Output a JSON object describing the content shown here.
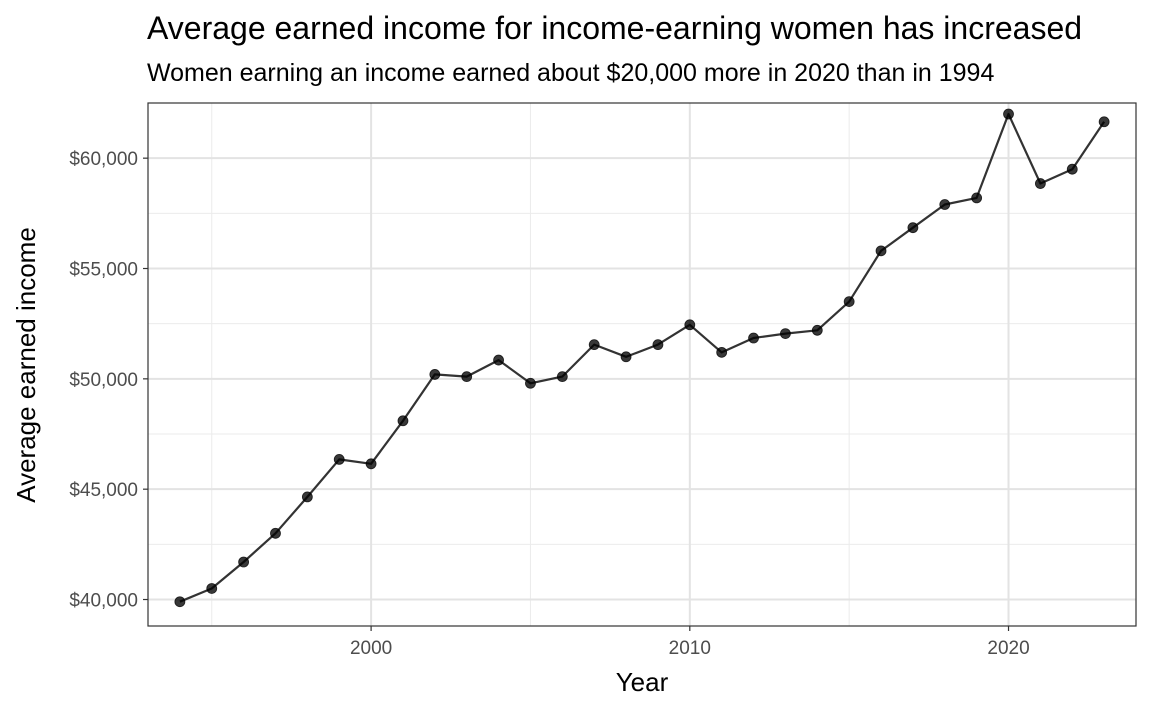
{
  "chart_data": {
    "type": "line",
    "title": "Average earned income for income-earning women has increased",
    "subtitle": "Women earning an income earned about $20,000 more in 2020 than in 1994",
    "xlabel": "Year",
    "ylabel": "Average earned income",
    "xlim": [
      1993,
      2024
    ],
    "ylim": [
      38800,
      62500
    ],
    "x_ticks": [
      2000,
      2010,
      2020
    ],
    "y_ticks": [
      40000,
      45000,
      50000,
      55000,
      60000
    ],
    "y_tick_labels": [
      "$40,000",
      "$45,000",
      "$50,000",
      "$55,000",
      "$60,000"
    ],
    "grid": true,
    "series": [
      {
        "x": [
          1994,
          1995,
          1996,
          1997,
          1998,
          1999,
          2000,
          2001,
          2002,
          2003,
          2004,
          2005,
          2006,
          2007,
          2008,
          2009,
          2010,
          2011,
          2012,
          2013,
          2014,
          2015,
          2016,
          2017,
          2018,
          2019,
          2020,
          2021,
          2022,
          2023
        ],
        "y": [
          39900,
          40500,
          41700,
          43000,
          44650,
          46350,
          46150,
          48100,
          50200,
          50100,
          50850,
          49800,
          50100,
          51550,
          51000,
          51550,
          52450,
          51200,
          51850,
          52050,
          52200,
          53500,
          55800,
          56850,
          57900,
          58200,
          62000,
          58850,
          59500,
          61650
        ],
        "color": "#333333"
      }
    ]
  }
}
